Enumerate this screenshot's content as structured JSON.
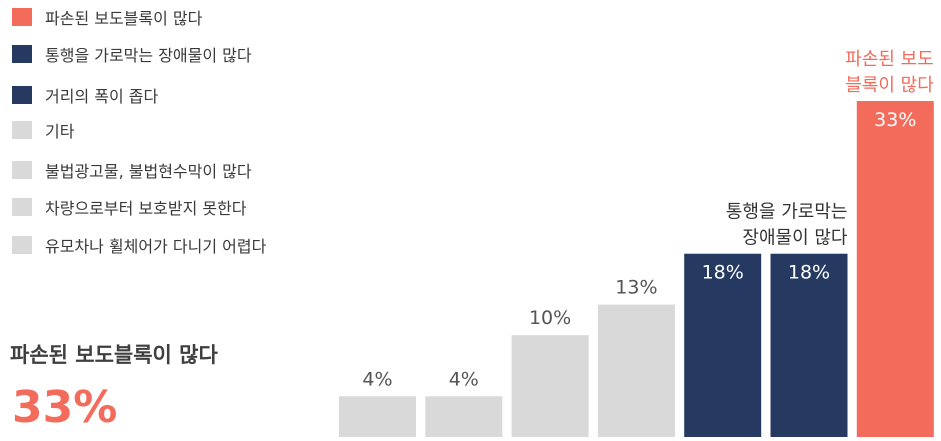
{
  "colors": {
    "highlight": "#f26b5b",
    "dark": "#263a61",
    "gray": "#d9d9d9",
    "label_dark": "#333333",
    "label_gray": "#555555",
    "label_light": "#ffffff"
  },
  "legend": [
    {
      "label": "파손된 보도블록이 많다",
      "color": "#f26b5b"
    },
    {
      "label": "통행을 가로막는 장애물이 많다",
      "color": "#263a61"
    },
    {
      "label": "거리의 폭이 좁다",
      "color": "#263a61"
    },
    {
      "label": "기타",
      "color": "#d9d9d9"
    },
    {
      "label": "불법광고물, 불법현수막이 많다",
      "color": "#d9d9d9"
    },
    {
      "label": "차량으로부터 보호받지 못한다",
      "color": "#d9d9d9"
    },
    {
      "label": "유모차나 휠체어가 다니기 어렵다",
      "color": "#d9d9d9"
    }
  ],
  "highlight": {
    "title": "파손된 보도블록이 많다",
    "value": "33%"
  },
  "chart_data": {
    "type": "bar",
    "unit": "%",
    "ylim": [
      0,
      33
    ],
    "values": [
      4,
      4,
      10,
      13,
      18,
      18,
      33
    ],
    "value_labels": [
      "4%",
      "4%",
      "10%",
      "13%",
      "18%",
      "18%",
      "33%"
    ],
    "bar_colors": [
      "#d9d9d9",
      "#d9d9d9",
      "#d9d9d9",
      "#d9d9d9",
      "#263a61",
      "#263a61",
      "#f26b5b"
    ],
    "annotations": [
      {
        "bar_index": 4,
        "lines": [
          "통행을 가로막는",
          "장애물이 많다"
        ],
        "color": "#333333"
      },
      {
        "bar_index": 6,
        "lines": [
          "파손된 보도",
          "블록이 많다"
        ],
        "color": "#f26b5b"
      }
    ]
  }
}
